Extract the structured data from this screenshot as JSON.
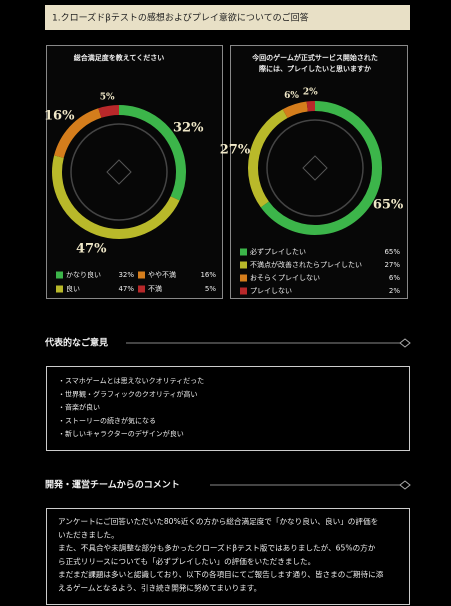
{
  "header": {
    "title": "1.クローズドβテストの感想およびプレイ意欲についてのご回答"
  },
  "chart_data": [
    {
      "type": "pie",
      "donut": true,
      "title": "総合満足度を教えてください",
      "categories": [
        "かなり良い",
        "良い",
        "やや不満",
        "不満"
      ],
      "values": [
        32,
        47,
        16,
        5
      ],
      "value_labels": [
        "32%",
        "47%",
        "16%",
        "5%"
      ],
      "colors": [
        "#3cb54a",
        "#b9b92a",
        "#d47d1c",
        "#b8282a"
      ]
    },
    {
      "type": "pie",
      "donut": true,
      "title": [
        "今回のゲームが正式サービス開始された",
        "際には、プレイしたいと思いますか"
      ],
      "categories": [
        "必ずプレイしたい",
        "不満点が改善されたらプレイしたい",
        "おそらくプレイしない",
        "プレイしない"
      ],
      "values": [
        65,
        27,
        6,
        2
      ],
      "value_labels": [
        "65%",
        "27%",
        "6%",
        "2%"
      ],
      "colors": [
        "#3cb54a",
        "#b9b92a",
        "#d47d1c",
        "#b8282a"
      ]
    }
  ],
  "opinions": {
    "title": "代表的なご意見",
    "items": [
      "・スマホゲームとは思えないクオリティだった",
      "・世界観・グラフィックのクオリティが高い",
      "・音楽が良い",
      "・ストーリーの続きが気になる",
      "・新しいキャラクターのデザインが良い"
    ]
  },
  "comment": {
    "title": "開発・運営チームからのコメント",
    "lines": [
      "アンケートにご回答いただいた80%近くの方から総合満足度で「かなり良い、良い」の評価を",
      "いただきました。",
      "また、不具合や未調整な部分も多かったクローズドβテスト版ではありましたが、65%の方か",
      "ら正式リリースについても「必ずプレイしたい」の評価をいただきました。",
      "まだまだ課題は多いと認識しており、以下の各項目にてご報告します通り、皆さまのご期待に添",
      "えるゲームとなるよう、引き続き開発に努めてまいります。"
    ]
  }
}
